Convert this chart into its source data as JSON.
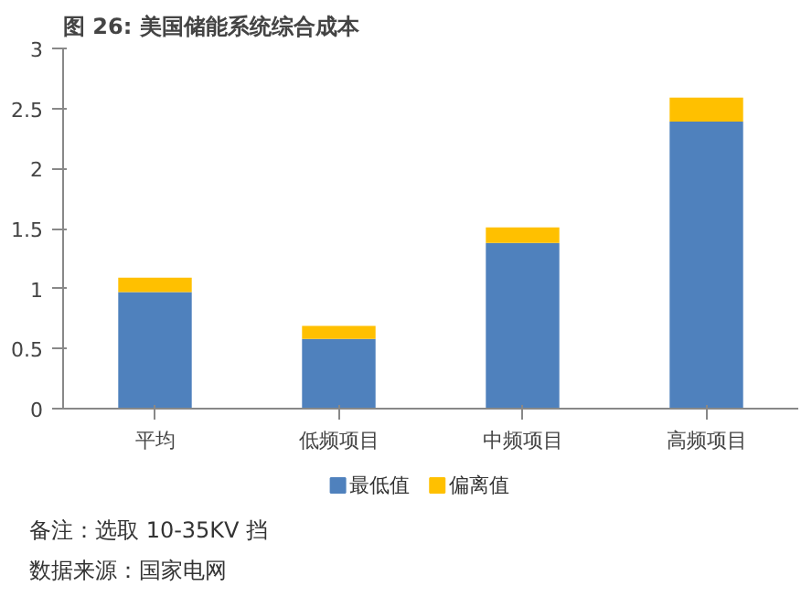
{
  "chart_data": {
    "type": "bar",
    "title": "图 26: 美国储能系统综合成本",
    "categories": [
      "平均",
      "低频项目",
      "中频项目",
      "高频项目"
    ],
    "stacked": true,
    "series": [
      {
        "name": "最低值",
        "color": "#4f81bd",
        "values": [
          0.97,
          0.58,
          1.38,
          2.39
        ]
      },
      {
        "name": "偏离值",
        "color": "#ffc000",
        "values": [
          0.12,
          0.11,
          0.13,
          0.2
        ]
      }
    ],
    "ylim": [
      0,
      3
    ],
    "yticks": [
      0,
      0.5,
      1,
      1.5,
      2,
      2.5,
      3
    ],
    "grid": false,
    "legend": "bottom",
    "annotations": [
      "备注：选取 10-35KV 挡",
      "数据来源：国家电网"
    ]
  }
}
